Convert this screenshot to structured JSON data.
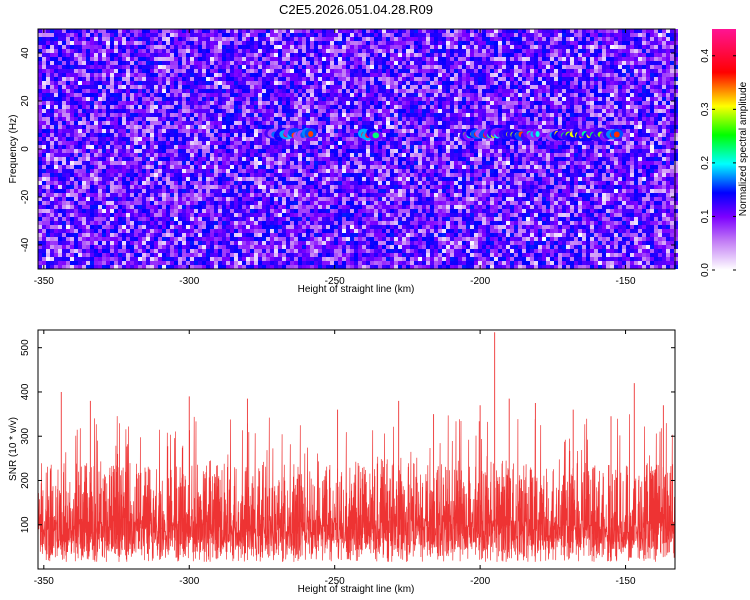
{
  "title": "C2E5.2026.051.04.28.R09",
  "chart_data": [
    {
      "type": "heatmap",
      "xlabel": "Height of straight line (km)",
      "ylabel": "Frequency (Hz)",
      "xlim": [
        -352,
        -133
      ],
      "ylim": [
        -50,
        50
      ],
      "xticks": [
        -350,
        -300,
        -250,
        -200,
        -150
      ],
      "yticks": [
        -40,
        -20,
        0,
        20,
        40
      ],
      "colorbar": {
        "label": "Normalized spectral amplitude",
        "range": [
          0,
          0.45
        ],
        "ticks": [
          0,
          0.1,
          0.2,
          0.3,
          0.4
        ],
        "colors": [
          "#ffffff",
          "#a020f0",
          "#0000ff",
          "#00ffff",
          "#00ff00",
          "#ffff00",
          "#ff0000",
          "#ff1493"
        ]
      },
      "signal_track": {
        "frequency": 6,
        "segments": [
          [
            -272,
            -258
          ],
          [
            -240,
            -235
          ],
          [
            -205,
            -180
          ],
          [
            -175,
            -152
          ]
        ],
        "peak_amplitude": 0.42
      },
      "background_amplitude": [
        0,
        0.15
      ]
    },
    {
      "type": "line",
      "xlabel": "Height of straight line (km)",
      "ylabel": "SNR (10 * v/v)",
      "xlim": [
        -352,
        -133
      ],
      "ylim": [
        0,
        540
      ],
      "xticks": [
        -350,
        -300,
        -250,
        -200,
        -150
      ],
      "yticks": [
        100,
        200,
        300,
        400,
        500
      ],
      "color": "#ee3333",
      "baseline_range": [
        40,
        240
      ],
      "peaks": [
        {
          "x": -344,
          "y": 400
        },
        {
          "x": -334,
          "y": 380
        },
        {
          "x": -300,
          "y": 390
        },
        {
          "x": -280,
          "y": 385
        },
        {
          "x": -249,
          "y": 360
        },
        {
          "x": -228,
          "y": 380
        },
        {
          "x": -216,
          "y": 350
        },
        {
          "x": -200,
          "y": 370
        },
        {
          "x": -195,
          "y": 535
        },
        {
          "x": -190,
          "y": 385
        },
        {
          "x": -181,
          "y": 375
        },
        {
          "x": -168,
          "y": 360
        },
        {
          "x": -155,
          "y": 345
        },
        {
          "x": -147,
          "y": 420
        },
        {
          "x": -137,
          "y": 370
        }
      ]
    }
  ]
}
